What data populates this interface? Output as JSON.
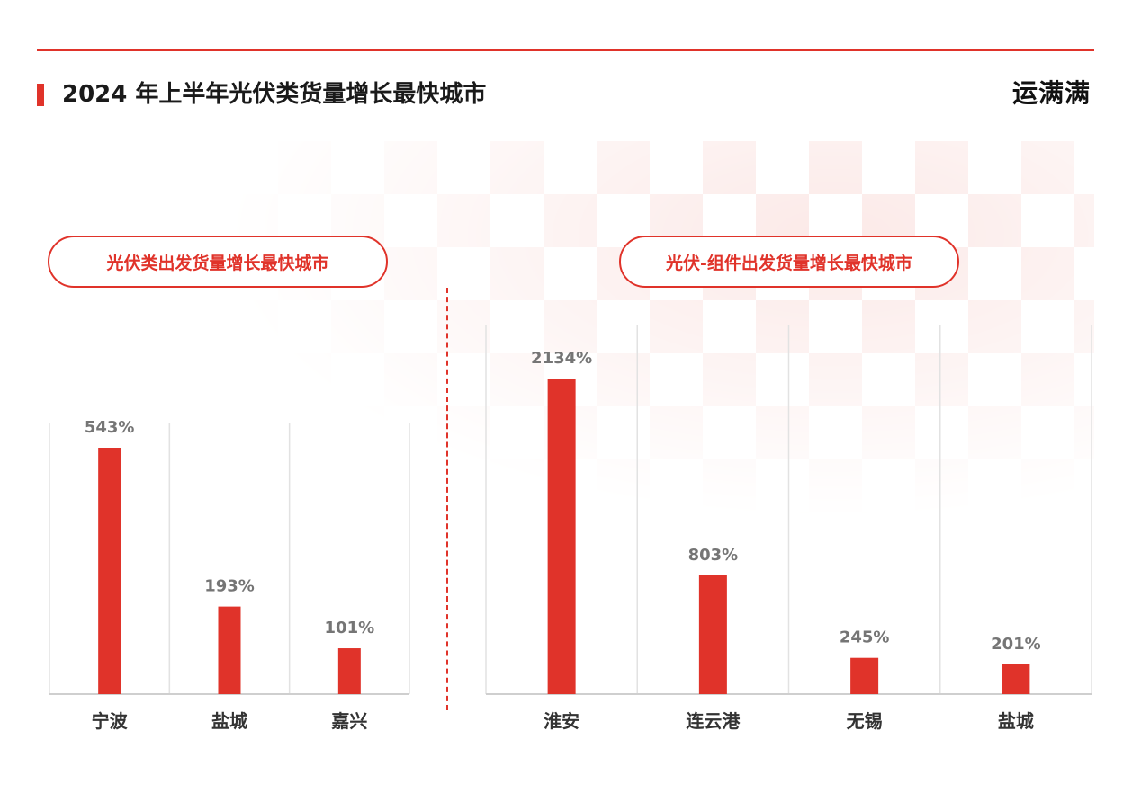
{
  "header": {
    "title": "2024 年上半年光伏类货量增长最快城市",
    "brand": "运满满"
  },
  "colors": {
    "accent": "#e0332a",
    "value_label": "#757575",
    "category_label": "#333333"
  },
  "chart_data": [
    {
      "type": "bar",
      "title": "光伏类出发货量增长最快城市",
      "categories": [
        "宁波",
        "盐城",
        "嘉兴"
      ],
      "values": [
        543,
        193,
        101
      ],
      "value_labels": [
        "543%",
        "193%",
        "101%"
      ],
      "ylim": [
        0,
        600
      ],
      "grid": true
    },
    {
      "type": "bar",
      "title": "光伏-组件出发货量增长最快城市",
      "categories": [
        "淮安",
        "连云港",
        "无锡",
        "盐城"
      ],
      "values": [
        2134,
        803,
        245,
        201
      ],
      "value_labels": [
        "2134%",
        "803%",
        "245%",
        "201%"
      ],
      "ylim": [
        0,
        2500
      ],
      "grid": true
    }
  ]
}
